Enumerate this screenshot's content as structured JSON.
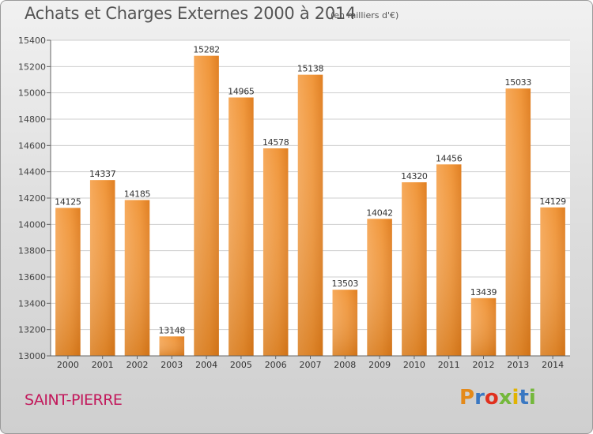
{
  "header": {
    "title": "Achats et Charges Externes 2000 à 2014",
    "subtitle": "(en milliers d'€)"
  },
  "footer": {
    "location": "SAINT-PIERRE",
    "logo_letters": [
      "P",
      "r",
      "o",
      "x",
      "i",
      "t",
      "i"
    ],
    "logo_colors": [
      "#e48a1a",
      "#3a78c2",
      "#e0301e",
      "#74b83b",
      "#e2b300",
      "#3a78c2",
      "#74b83b"
    ]
  },
  "chart_data": {
    "type": "bar",
    "categories": [
      "2000",
      "2001",
      "2002",
      "2003",
      "2004",
      "2005",
      "2006",
      "2007",
      "2008",
      "2009",
      "2010",
      "2011",
      "2012",
      "2013",
      "2014"
    ],
    "values": [
      14125,
      14337,
      14185,
      13148,
      15282,
      14965,
      14578,
      15138,
      13503,
      14042,
      14320,
      14456,
      13439,
      15033,
      14129
    ],
    "data_labels": [
      "14125",
      "14337",
      "14185",
      "13148",
      "15282",
      "14965",
      "14578",
      "15138",
      "13503",
      "14042",
      "14320",
      "14456",
      "13439",
      "15033",
      "14129"
    ],
    "ylim": [
      13000,
      15400
    ],
    "yticks": [
      13000,
      13200,
      13400,
      13600,
      13800,
      14000,
      14200,
      14400,
      14600,
      14800,
      15000,
      15200,
      15400
    ],
    "grid": true,
    "bar_color": "#f0963a",
    "title": "Achats et Charges Externes 2000 à 2014",
    "xlabel": "",
    "ylabel": ""
  }
}
